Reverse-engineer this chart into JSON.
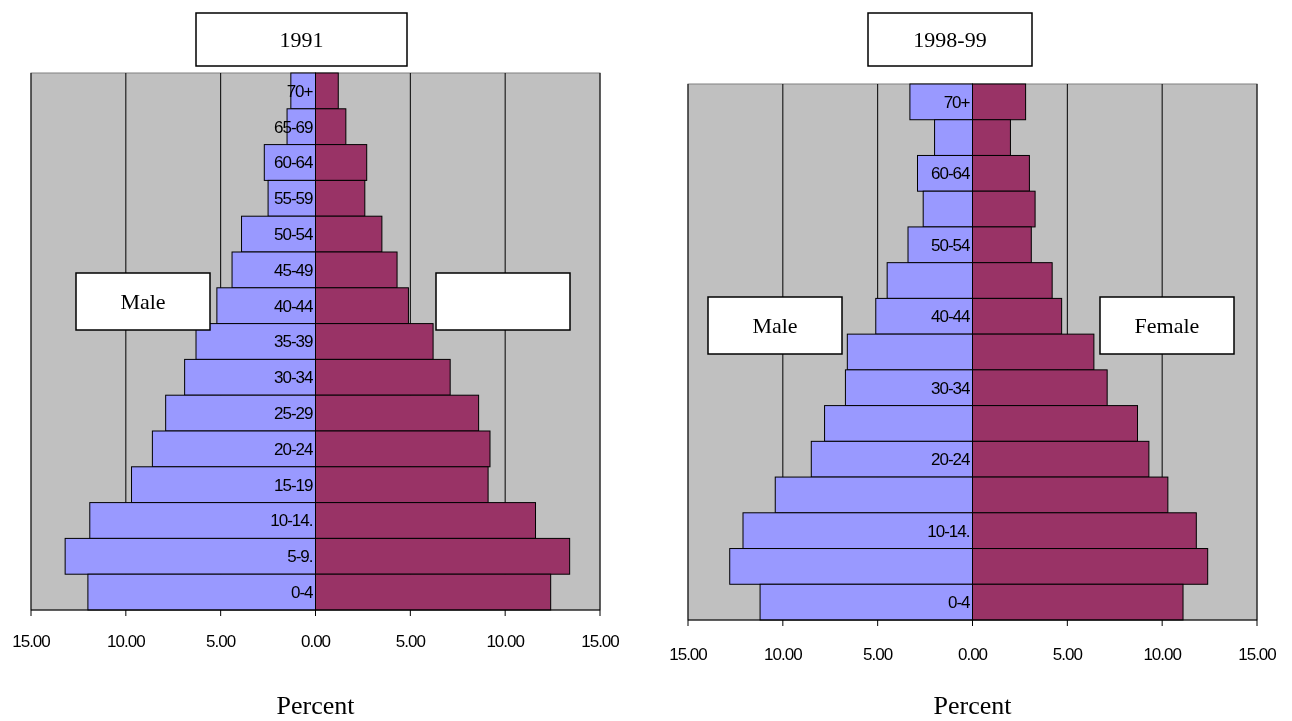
{
  "chart_data": [
    {
      "type": "bar",
      "orientation": "horizontal",
      "stacked": true,
      "title": "1991",
      "xlabel": "Percent",
      "categories": [
        "70+",
        "65-69",
        "60-64",
        "55-59",
        "50-54",
        "45-49",
        "40-44",
        "35-39",
        "30-34",
        "25-29",
        "20-24",
        "15-19",
        "10-14.",
        "5-9.",
        "0-4"
      ],
      "series": [
        {
          "name": "Male",
          "color": "#9999ff",
          "values": [
            -1.3,
            -1.5,
            -2.7,
            -2.5,
            -3.9,
            -4.4,
            -5.2,
            -6.3,
            -6.9,
            -7.9,
            -8.6,
            -9.7,
            -11.9,
            -13.2,
            -12.0
          ]
        },
        {
          "color": "#993366",
          "values": [
            1.2,
            1.6,
            2.7,
            2.6,
            3.5,
            4.3,
            4.9,
            6.2,
            7.1,
            8.6,
            9.2,
            9.1,
            11.6,
            13.4,
            12.4
          ]
        }
      ],
      "xlim": [
        -15,
        15
      ],
      "xticks": [
        {
          "value": -15,
          "label": "15.00"
        },
        {
          "value": -10,
          "label": "10.00"
        },
        {
          "value": -5,
          "label": "5.00"
        },
        {
          "value": 0,
          "label": "0.00"
        },
        {
          "value": 5,
          "label": "5.00"
        },
        {
          "value": 10,
          "label": "10.00"
        },
        {
          "value": 15,
          "label": "15.00"
        }
      ],
      "grid": "x"
    },
    {
      "type": "bar",
      "orientation": "horizontal",
      "stacked": true,
      "title": "1998-99",
      "xlabel": "Percent",
      "categories": [
        "70+",
        null,
        "60-64",
        null,
        "50-54",
        null,
        "40-44",
        null,
        "30-34",
        null,
        "20-24",
        null,
        "10-14.",
        null,
        "0-4"
      ],
      "series": [
        {
          "name": "Male",
          "color": "#9999ff",
          "values": [
            -3.3,
            -2.0,
            -2.9,
            -2.6,
            -3.4,
            -4.5,
            -5.1,
            -6.6,
            -6.7,
            -7.8,
            -8.5,
            -10.4,
            -12.1,
            -12.8,
            -11.2
          ]
        },
        {
          "name": "Female",
          "color": "#993366",
          "values": [
            2.8,
            2.0,
            3.0,
            3.3,
            3.1,
            4.2,
            4.7,
            6.4,
            7.1,
            8.7,
            9.3,
            10.3,
            11.8,
            12.4,
            11.1
          ]
        }
      ],
      "xlim": [
        -15,
        15
      ],
      "xticks": [
        {
          "value": -15,
          "label": "15.00"
        },
        {
          "value": -10,
          "label": "10.00"
        },
        {
          "value": -5,
          "label": "5.00"
        },
        {
          "value": 0,
          "label": "0.00"
        },
        {
          "value": 5,
          "label": "5.00"
        },
        {
          "value": 10,
          "label": "10.00"
        },
        {
          "value": 15,
          "label": "15.00"
        }
      ],
      "grid": "x"
    }
  ]
}
